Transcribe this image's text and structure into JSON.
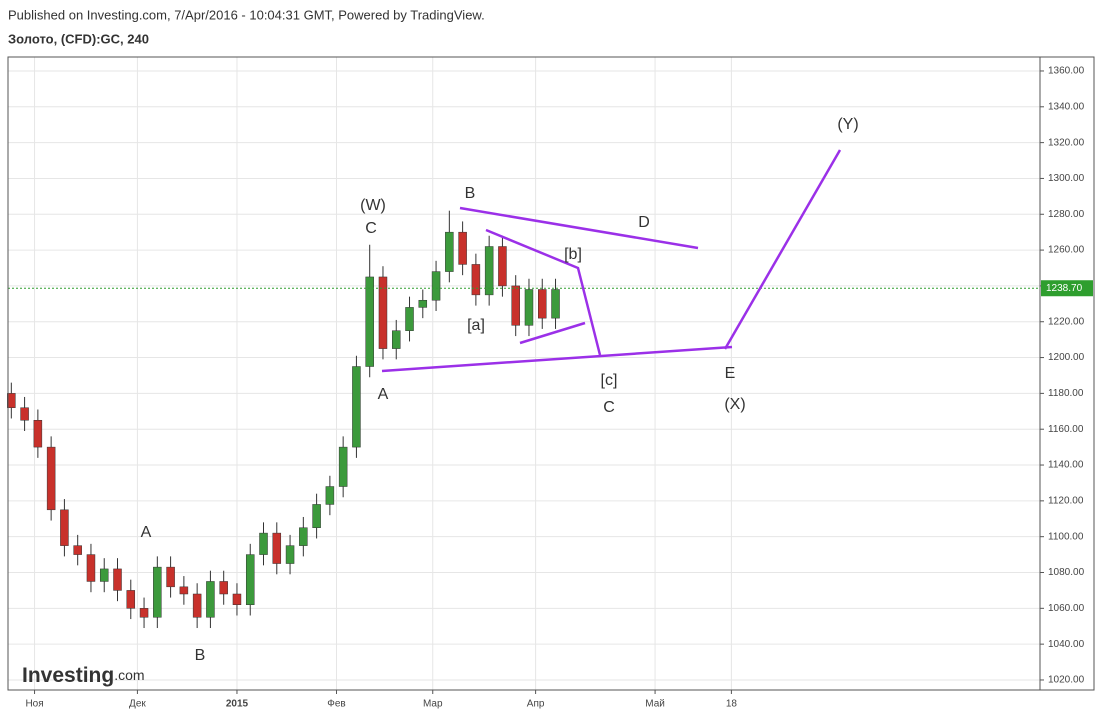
{
  "header": {
    "published": "Published on Investing.com, 7/Apr/2016 - 10:04:31 GMT, Powered by TradingView.",
    "instrument": "Золото, (CFD):GC, 240"
  },
  "logo": {
    "name": "Investing",
    "suffix": ".com"
  },
  "chart_data": {
    "type": "candlestick",
    "x": [
      1,
      5,
      9,
      13,
      17,
      21,
      25,
      29,
      33,
      37,
      41,
      45,
      49,
      53,
      57,
      61,
      65,
      69,
      73,
      77,
      81,
      85,
      89,
      93,
      97,
      101,
      105,
      109,
      113,
      117,
      121,
      125,
      129,
      133,
      137,
      141,
      145,
      149,
      153,
      157,
      161,
      165
    ],
    "open": [
      1180,
      1172,
      1165,
      1150,
      1115,
      1095,
      1090,
      1075,
      1082,
      1070,
      1060,
      1055,
      1083,
      1072,
      1068,
      1055,
      1075,
      1068,
      1062,
      1090,
      1102,
      1085,
      1095,
      1105,
      1118,
      1128,
      1150,
      1195,
      1245,
      1205,
      1215,
      1228,
      1232,
      1248,
      1270,
      1252,
      1235,
      1262,
      1240,
      1218,
      1238,
      1222
    ],
    "high": [
      1186,
      1178,
      1171,
      1156,
      1121,
      1101,
      1096,
      1088,
      1088,
      1076,
      1066,
      1089,
      1089,
      1078,
      1074,
      1081,
      1081,
      1074,
      1096,
      1108,
      1108,
      1101,
      1111,
      1124,
      1134,
      1156,
      1201,
      1263,
      1251,
      1221,
      1234,
      1238,
      1254,
      1282,
      1276,
      1258,
      1268,
      1268,
      1246,
      1244,
      1244,
      1244
    ],
    "low": [
      1166,
      1159,
      1144,
      1109,
      1089,
      1084,
      1069,
      1069,
      1064,
      1054,
      1049,
      1049,
      1066,
      1062,
      1049,
      1049,
      1062,
      1056,
      1056,
      1084,
      1079,
      1079,
      1089,
      1099,
      1112,
      1122,
      1144,
      1189,
      1199,
      1199,
      1209,
      1222,
      1226,
      1242,
      1246,
      1229,
      1229,
      1234,
      1212,
      1212,
      1216,
      1216
    ],
    "close": [
      1172,
      1165,
      1150,
      1115,
      1095,
      1090,
      1075,
      1082,
      1070,
      1060,
      1055,
      1083,
      1072,
      1068,
      1055,
      1075,
      1068,
      1062,
      1090,
      1102,
      1085,
      1095,
      1105,
      1118,
      1128,
      1150,
      1195,
      1245,
      1205,
      1215,
      1228,
      1232,
      1248,
      1270,
      1252,
      1235,
      1262,
      1240,
      1218,
      1238,
      1222,
      1238
    ],
    "up_color": "#3c9a3c",
    "down_color": "#c8312b",
    "last_price": {
      "value": 1238.7,
      "label": "1238.70"
    },
    "last_price_color": "#2e9e2e",
    "xlim": [
      0,
      311
    ],
    "xticks": [
      {
        "value": 8,
        "label": "Ноя"
      },
      {
        "value": 39,
        "label": "Дек"
      },
      {
        "value": 69,
        "label": "2015"
      },
      {
        "value": 99,
        "label": "Фев"
      },
      {
        "value": 128,
        "label": "Мар"
      },
      {
        "value": 159,
        "label": "Апр"
      },
      {
        "value": 195,
        "label": "Май"
      },
      {
        "value": 218,
        "label": "18"
      }
    ],
    "ylim": [
      1014.4,
      1367.8
    ],
    "yticks": [
      {
        "value": 1020,
        "label": "1020.00"
      },
      {
        "value": 1040,
        "label": "1040.00"
      },
      {
        "value": 1060,
        "label": "1060.00"
      },
      {
        "value": 1080,
        "label": "1080.00"
      },
      {
        "value": 1100,
        "label": "1100.00"
      },
      {
        "value": 1120,
        "label": "1120.00"
      },
      {
        "value": 1140,
        "label": "1140.00"
      },
      {
        "value": 1160,
        "label": "1160.00"
      },
      {
        "value": 1180,
        "label": "1180.00"
      },
      {
        "value": 1200,
        "label": "1200.00"
      },
      {
        "value": 1220,
        "label": "1220.00"
      },
      {
        "value": 1240,
        "label": "1240.00"
      },
      {
        "value": 1260,
        "label": "1260.00"
      },
      {
        "value": 1280,
        "label": "1280.00"
      },
      {
        "value": 1300,
        "label": "1300.00"
      },
      {
        "value": 1320,
        "label": "1320.00"
      },
      {
        "value": 1340,
        "label": "1340.00"
      },
      {
        "value": 1360,
        "label": "1360.00"
      }
    ],
    "grid": true,
    "wave_labels": [
      "(W)",
      "C",
      "A",
      "B",
      "D",
      "[b]",
      "[a]",
      "[c]",
      "C",
      "E",
      "(X)",
      "(Y)",
      "A",
      "B"
    ]
  }
}
